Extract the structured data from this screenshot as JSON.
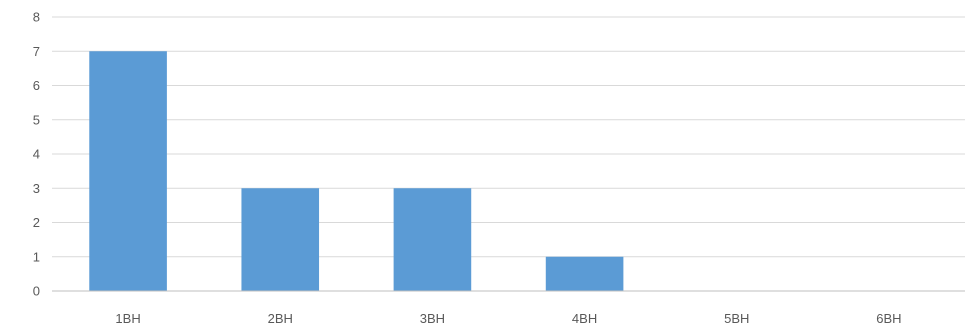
{
  "chart_data": {
    "type": "bar",
    "title": "",
    "xlabel": "",
    "ylabel": "",
    "categories": [
      "1BH",
      "2BH",
      "3BH",
      "4BH",
      "5BH",
      "6BH"
    ],
    "values": [
      7,
      3,
      3,
      1,
      0,
      0
    ],
    "ylim": [
      0,
      8
    ],
    "yticks": [
      "0",
      "1",
      "2",
      "3",
      "4",
      "5",
      "6",
      "7",
      "8"
    ],
    "grid": true,
    "legend": "none",
    "colors": {
      "bar": "#5b9bd5",
      "grid": "#d9d9d9",
      "axis": "#bfbfbf",
      "text": "#595959"
    }
  }
}
